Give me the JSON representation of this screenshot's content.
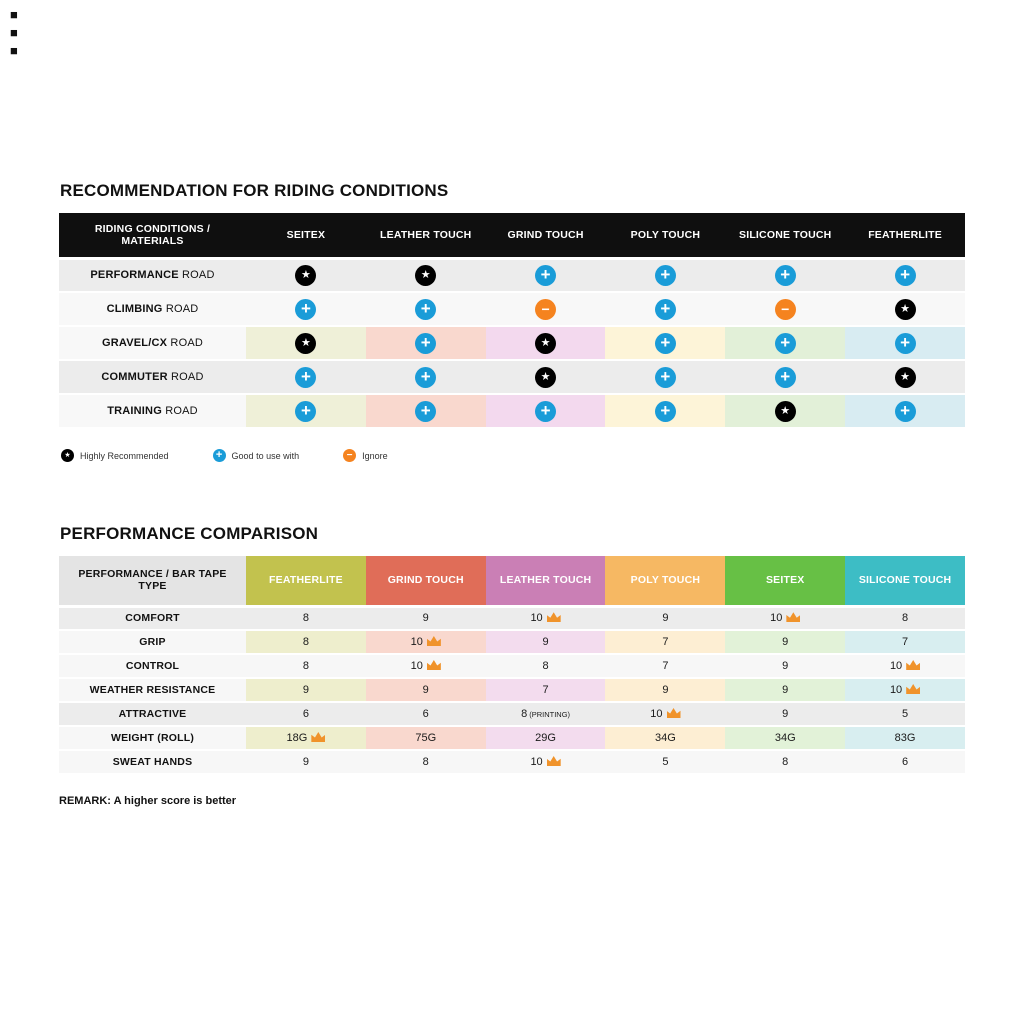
{
  "page": {
    "corner_glyphs": [
      "■",
      "■",
      "■"
    ]
  },
  "chart_data": [
    {
      "type": "table",
      "title": "RECOMMENDATION FOR RIDING CONDITIONS",
      "corner_header": "RIDING CONDITIONS / MATERIALS",
      "columns": [
        "SEITEX",
        "LEATHER TOUCH",
        "GRIND TOUCH",
        "POLY TOUCH",
        "SILICONE TOUCH",
        "FEATHERLITE"
      ],
      "column_tints": [
        "#eff0d8",
        "#f9d8ce",
        "#f3d9ee",
        "#fdf4d8",
        "#e2f0d8",
        "#d8ecf2"
      ],
      "rows": [
        {
          "condition": "PERFORMANCE",
          "surface": "ROAD",
          "cells": [
            "star",
            "star",
            "plus",
            "plus",
            "plus",
            "plus"
          ]
        },
        {
          "condition": "CLIMBING",
          "surface": "ROAD",
          "cells": [
            "plus",
            "plus",
            "minus",
            "plus",
            "minus",
            "star"
          ]
        },
        {
          "condition": "GRAVEL/CX",
          "surface": "ROAD",
          "cells": [
            "star",
            "plus",
            "star",
            "plus",
            "plus",
            "plus"
          ]
        },
        {
          "condition": "COMMUTER",
          "surface": "ROAD",
          "cells": [
            "plus",
            "plus",
            "star",
            "plus",
            "plus",
            "star"
          ]
        },
        {
          "condition": "TRAINING",
          "surface": "ROAD",
          "cells": [
            "plus",
            "plus",
            "plus",
            "plus",
            "star",
            "plus"
          ]
        }
      ],
      "legend": [
        {
          "icon": "star",
          "label": "Highly Recommended"
        },
        {
          "icon": "plus",
          "label": "Good to use with"
        },
        {
          "icon": "minus",
          "label": "Ignore"
        }
      ],
      "icon_colors": {
        "star": "#000000",
        "plus": "#1a9cd8",
        "minus": "#f5831f"
      }
    },
    {
      "type": "table",
      "title": "PERFORMANCE COMPARISON",
      "corner_header": "PERFORMANCE / BAR TAPE TYPE",
      "columns": [
        {
          "label": "FEATHERLITE",
          "color": "#c2c24e",
          "tint": "#eeeecd"
        },
        {
          "label": "GRIND TOUCH",
          "color": "#e06d58",
          "tint": "#f9d8ce"
        },
        {
          "label": "LEATHER TOUCH",
          "color": "#ca7fb5",
          "tint": "#f3dcee"
        },
        {
          "label": "POLY TOUCH",
          "color": "#f6b863",
          "tint": "#fdeed3"
        },
        {
          "label": "SEITEX",
          "color": "#67c045",
          "tint": "#e2f2d8"
        },
        {
          "label": "SILICONE TOUCH",
          "color": "#3dbdc5",
          "tint": "#d8eef0"
        }
      ],
      "rows": [
        {
          "label": "COMFORT",
          "cells": [
            {
              "v": "8"
            },
            {
              "v": "9"
            },
            {
              "v": "10",
              "crown": true
            },
            {
              "v": "9"
            },
            {
              "v": "10",
              "crown": true
            },
            {
              "v": "8"
            }
          ]
        },
        {
          "label": "GRIP",
          "cells": [
            {
              "v": "8"
            },
            {
              "v": "10",
              "crown": true
            },
            {
              "v": "9"
            },
            {
              "v": "7"
            },
            {
              "v": "9"
            },
            {
              "v": "7"
            }
          ]
        },
        {
          "label": "CONTROL",
          "cells": [
            {
              "v": "8"
            },
            {
              "v": "10",
              "crown": true
            },
            {
              "v": "8"
            },
            {
              "v": "7"
            },
            {
              "v": "9"
            },
            {
              "v": "10",
              "crown": true
            }
          ]
        },
        {
          "label": "WEATHER RESISTANCE",
          "cells": [
            {
              "v": "9"
            },
            {
              "v": "9"
            },
            {
              "v": "7"
            },
            {
              "v": "9"
            },
            {
              "v": "9"
            },
            {
              "v": "10",
              "crown": true
            }
          ]
        },
        {
          "label": "ATTRACTIVE",
          "cells": [
            {
              "v": "6"
            },
            {
              "v": "6"
            },
            {
              "v": "8",
              "note": "(PRINTING)"
            },
            {
              "v": "10",
              "crown": true
            },
            {
              "v": "9"
            },
            {
              "v": "5"
            }
          ]
        },
        {
          "label": "WEIGHT (ROLL)",
          "cells": [
            {
              "v": "18G",
              "crown": true
            },
            {
              "v": "75G"
            },
            {
              "v": "29G"
            },
            {
              "v": "34G"
            },
            {
              "v": "34G"
            },
            {
              "v": "83G"
            }
          ]
        },
        {
          "label": "SWEAT HANDS",
          "cells": [
            {
              "v": "9"
            },
            {
              "v": "8"
            },
            {
              "v": "10",
              "crown": true
            },
            {
              "v": "5"
            },
            {
              "v": "8"
            },
            {
              "v": "6"
            }
          ]
        }
      ],
      "remark": "REMARK: A higher score is better",
      "crown_color": "#f0932b"
    }
  ]
}
